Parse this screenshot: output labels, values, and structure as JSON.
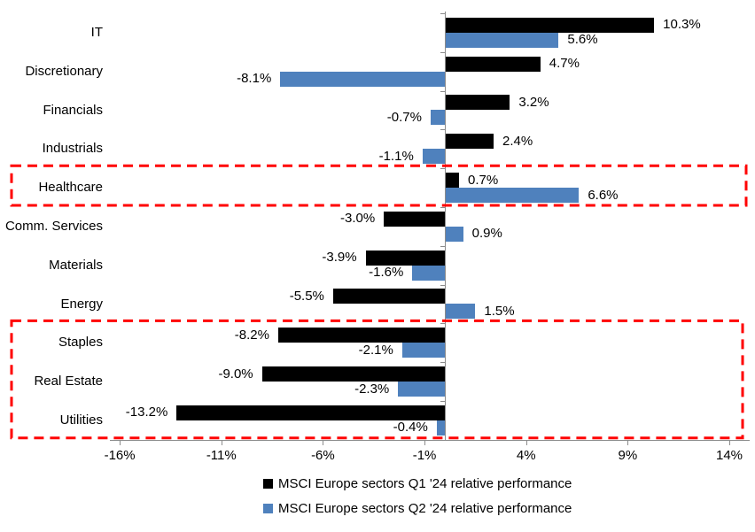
{
  "chart_data": {
    "type": "bar",
    "orientation": "horizontal",
    "title": "",
    "categories": [
      "IT",
      "Discretionary",
      "Financials",
      "Industrials",
      "Healthcare",
      "Comm. Services",
      "Materials",
      "Energy",
      "Staples",
      "Real Estate",
      "Utilities"
    ],
    "series": [
      {
        "name": "MSCI Europe sectors Q1 '24 relative performance",
        "color": "#000000",
        "values": [
          10.3,
          4.7,
          3.2,
          2.4,
          0.7,
          -3.0,
          -3.9,
          -5.5,
          -8.2,
          -9.0,
          -13.2
        ],
        "labels": [
          "10.3%",
          "4.7%",
          "3.2%",
          "2.4%",
          "0.7%",
          "-3.0%",
          "-3.9%",
          "-5.5%",
          "-8.2%",
          "-9.0%",
          "-13.2%"
        ]
      },
      {
        "name": "MSCI Europe sectors Q2 '24 relative performance",
        "color": "#4F81BD",
        "values": [
          5.6,
          -8.1,
          -0.7,
          -1.1,
          6.6,
          0.9,
          -1.6,
          1.5,
          -2.1,
          -2.3,
          -0.4
        ],
        "labels": [
          "5.6%",
          "-8.1%",
          "-0.7%",
          "-1.1%",
          "6.6%",
          "0.9%",
          "-1.6%",
          "1.5%",
          "-2.1%",
          "-2.3%",
          "-0.4%"
        ]
      }
    ],
    "x_ticks": [
      "-16%",
      "-11%",
      "-6%",
      "-1%",
      "4%",
      "9%",
      "14%"
    ],
    "x_tick_values": [
      -16,
      -11,
      -6,
      -1,
      4,
      9,
      14
    ],
    "xlim": [
      -16.5,
      15
    ],
    "grid": false,
    "legend_position": "bottom",
    "axis_color": "#8C8C8C",
    "highlight_color": "#FF0000",
    "highlights": [
      {
        "rows": [
          4
        ],
        "label": "Healthcare highlighted"
      },
      {
        "rows": [
          8,
          9,
          10
        ],
        "label": "Staples, Real Estate, Utilities highlighted"
      }
    ]
  }
}
